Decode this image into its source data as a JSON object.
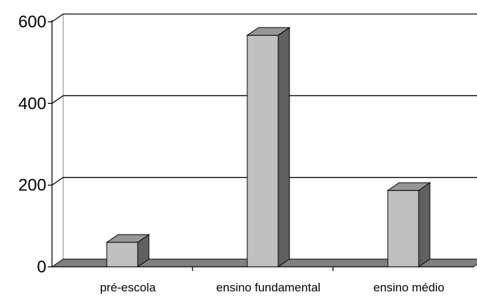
{
  "chart_data": {
    "type": "bar",
    "categories": [
      "pré-escola",
      "ensino fundamental",
      "ensino médio"
    ],
    "values": [
      60,
      567,
      187
    ],
    "title": "",
    "xlabel": "",
    "ylabel": "",
    "ylim": [
      0,
      600
    ],
    "yticks": [
      0,
      200,
      400,
      600
    ],
    "grid": true,
    "legend": "none",
    "three_d": true,
    "colors": {
      "bar_front": "#c0c0c0",
      "bar_side": "#606060",
      "bar_top": "#969696",
      "floor": "#808080",
      "grid": "#000000",
      "background": "#ffffff"
    }
  }
}
